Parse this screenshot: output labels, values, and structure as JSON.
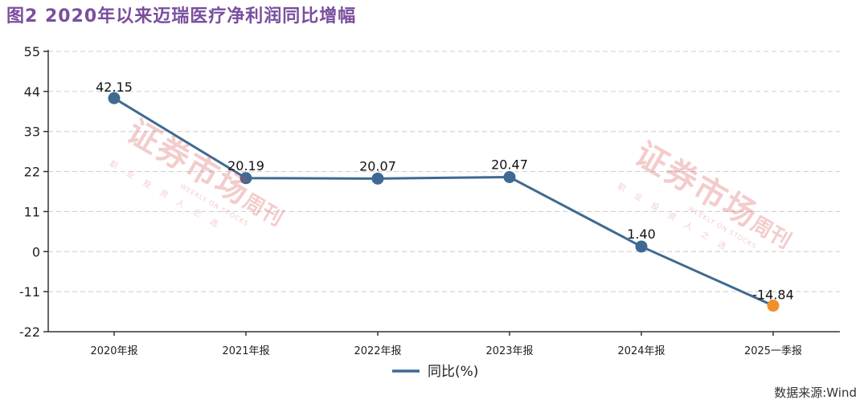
{
  "figure": {
    "title": "图2   2020年以来迈瑞医疗净利润同比增幅",
    "source": "数据来源:Wind"
  },
  "watermark": {
    "main": "证券市场",
    "sub": "周刊",
    "en": "WEEKLY ON STOCKS",
    "tagline": "职业投资人之选"
  },
  "colors": {
    "title": "#7a4f9e",
    "line": "#3e6a92",
    "marker": "#3e6a92",
    "highlight": "#f0902a",
    "grid": "#cccccc",
    "axis": "#333333",
    "watermark": "#d64a4a"
  },
  "chart_data": {
    "type": "line",
    "categories": [
      "2020年报",
      "2021年报",
      "2022年报",
      "2023年报",
      "2024年报",
      "2025一季报"
    ],
    "series": [
      {
        "name": "同比(%)",
        "values": [
          42.15,
          20.19,
          20.07,
          20.47,
          1.4,
          -14.84
        ]
      }
    ],
    "data_labels": [
      "42.15",
      "20.19",
      "20.07",
      "20.47",
      "1.40",
      "-14.84"
    ],
    "highlighted_point": "2025一季报",
    "title": "",
    "xlabel": "",
    "ylabel": "",
    "ylim": [
      -22,
      55
    ],
    "yticks": [
      -22,
      -11,
      0,
      11,
      22,
      33,
      44,
      55
    ],
    "ytick_labels": [
      "-22",
      "-11",
      "0",
      "11",
      "22",
      "33",
      "44",
      "55"
    ],
    "grid": true,
    "legend": "bottom-center"
  }
}
